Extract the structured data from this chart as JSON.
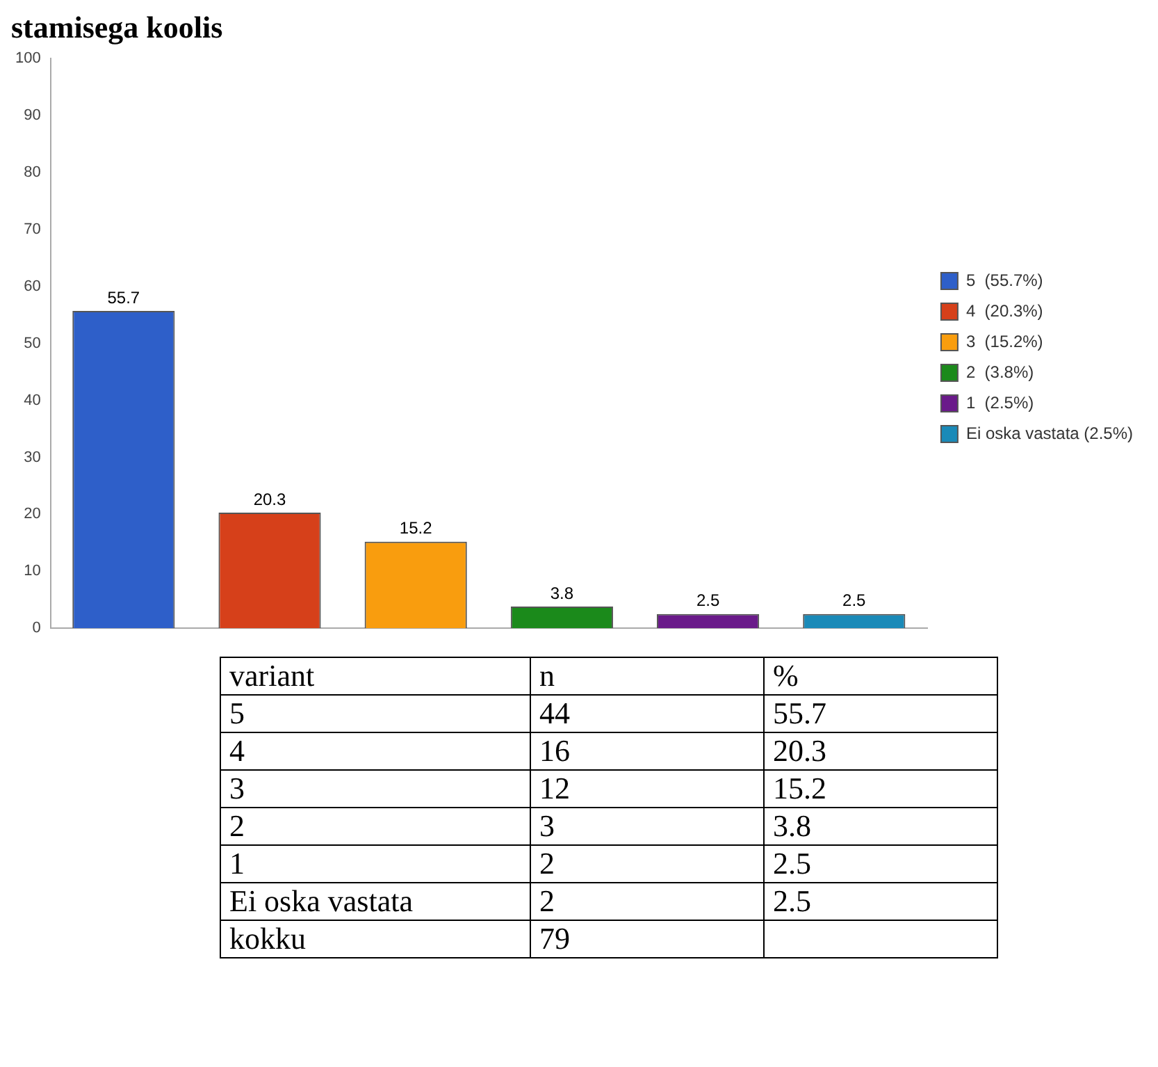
{
  "chart_data": {
    "type": "bar",
    "title": "stamisega koolis",
    "categories": [
      null,
      null,
      null,
      null,
      null,
      null
    ],
    "series": [
      {
        "name": "5  (55.7%)",
        "color": "#2e5fc9",
        "values": [
          55.7,
          null,
          null,
          null,
          null,
          null
        ]
      },
      {
        "name": "4  (20.3%)",
        "color": "#d6401a",
        "values": [
          null,
          20.3,
          null,
          null,
          null,
          null
        ]
      },
      {
        "name": "3  (15.2%)",
        "color": "#f99d0e",
        "values": [
          null,
          null,
          15.2,
          null,
          null,
          null
        ]
      },
      {
        "name": "2  (3.8%)",
        "color": "#1b8a1b",
        "values": [
          null,
          null,
          null,
          3.8,
          null,
          null
        ]
      },
      {
        "name": "1  (2.5%)",
        "color": "#6a1a8a",
        "values": [
          null,
          null,
          null,
          null,
          2.5,
          null
        ]
      },
      {
        "name": "Ei oska vastata (2.5%)",
        "color": "#1a8ab8",
        "values": [
          null,
          null,
          null,
          null,
          null,
          2.5
        ]
      }
    ],
    "ylim": [
      0,
      100
    ],
    "yticks": [
      0,
      10,
      20,
      30,
      40,
      50,
      60,
      70,
      80,
      90,
      100
    ],
    "grid": false,
    "legend": "right",
    "data_labels": true,
    "annotations": [
      "variant",
      "n",
      "%",
      "5",
      "44",
      "55.7",
      "4",
      "16",
      "20.3",
      "3",
      "12",
      "15.2",
      "2",
      "3",
      "3.8",
      "1",
      "2",
      "2.5",
      "Ei oska vastata",
      "2",
      "2.5",
      "kokku",
      "79"
    ]
  }
}
